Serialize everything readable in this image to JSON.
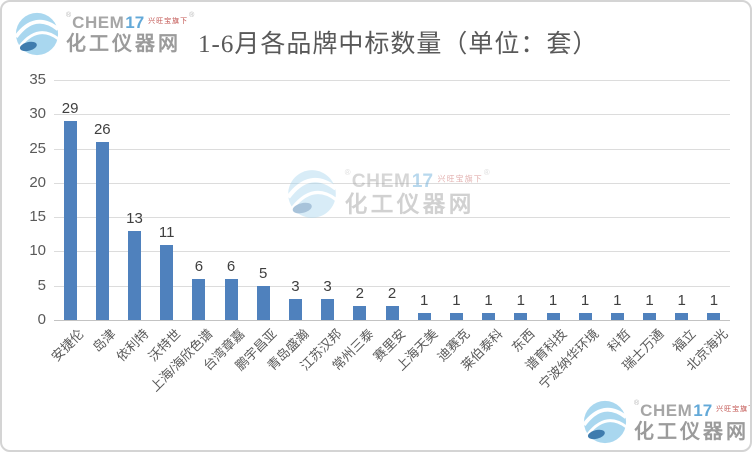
{
  "title": "1-6月各品牌中标数量（单位：套）",
  "logo": {
    "chem": "CHEM",
    "seventeen": "17",
    "reg": "®",
    "tagline": "兴旺宝旗下",
    "site": "化工仪器网"
  },
  "chart_data": {
    "type": "bar",
    "title": "1-6月各品牌中标数量（单位：套）",
    "categories": [
      "安捷伦",
      "岛津",
      "依利特",
      "沃特世",
      "上海/海欣色谱",
      "台湾章嘉",
      "鹏宇昌亚",
      "青岛盛瀚",
      "江苏汉邦",
      "常州三泰",
      "赛里安",
      "上海天美",
      "迪赛克",
      "莱伯泰科",
      "东西",
      "谱育科技",
      "宁波纳华环境",
      "科哲",
      "瑞士万通",
      "福立",
      "北京海光"
    ],
    "values": [
      29,
      26,
      13,
      11,
      6,
      6,
      5,
      3,
      3,
      2,
      2,
      1,
      1,
      1,
      1,
      1,
      1,
      1,
      1,
      1,
      1
    ],
    "xlabel": "",
    "ylabel": "",
    "ylim": [
      0,
      35
    ],
    "yticks": [
      0,
      5,
      10,
      15,
      20,
      25,
      30,
      35
    ],
    "grid": true,
    "legend_position": "none",
    "bar_color": "#4f81bd",
    "gridline_color": "#dcdcdc",
    "axis_text_color": "#595959"
  }
}
